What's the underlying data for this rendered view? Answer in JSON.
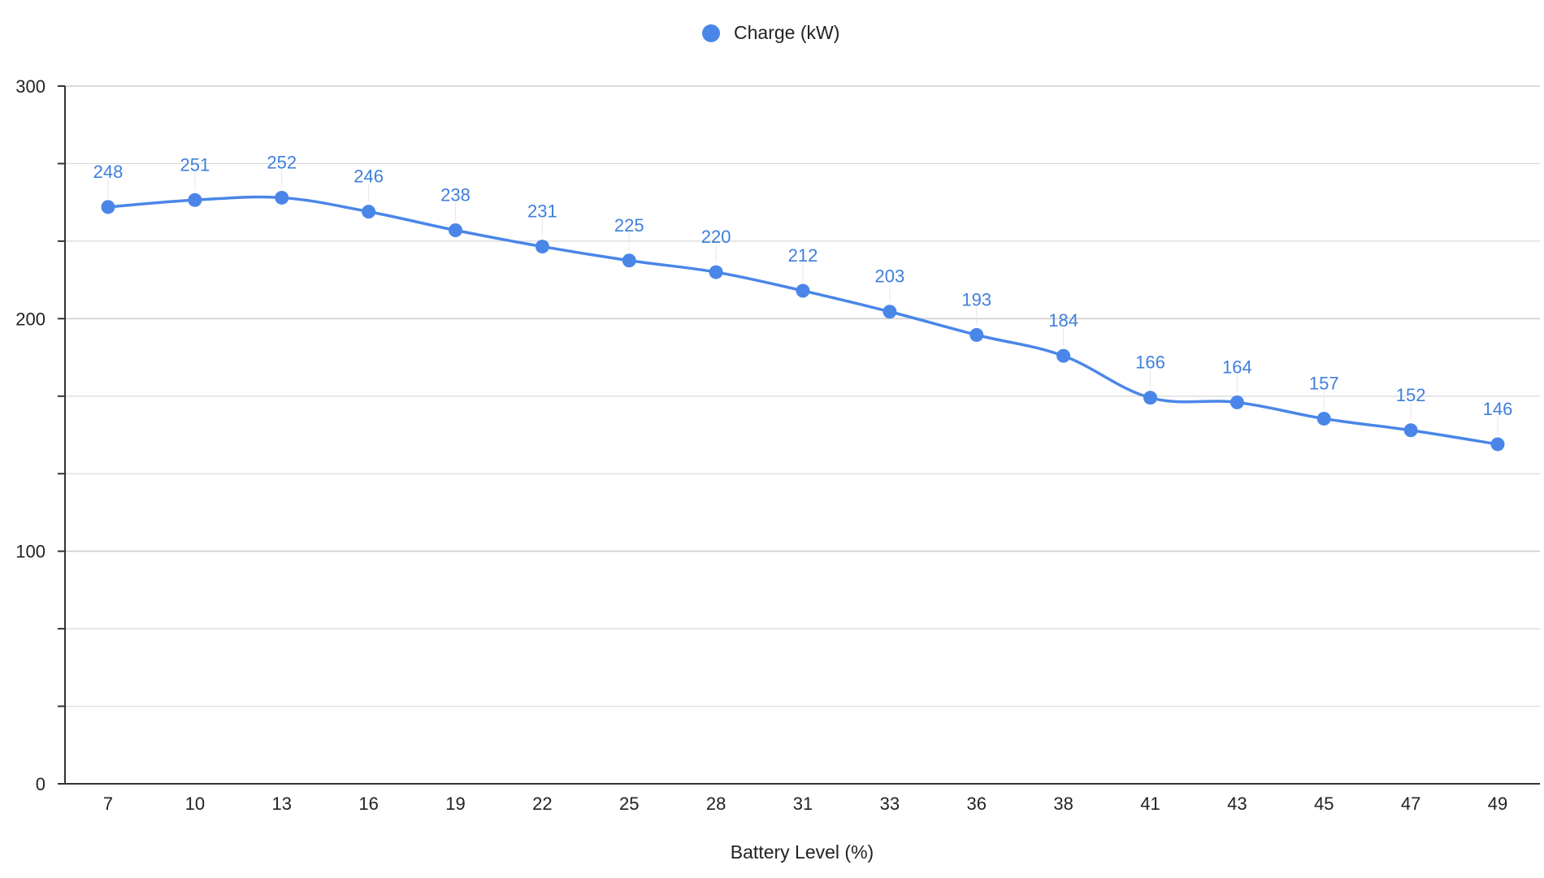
{
  "chart_data": {
    "type": "line",
    "title": "",
    "xlabel": "Battery Level (%)",
    "ylabel": "",
    "ylim": [
      0,
      300
    ],
    "y_major_ticks": [
      0,
      100,
      200,
      300
    ],
    "y_minor_step": 33.3333,
    "grid": true,
    "smooth": true,
    "legend": {
      "placement": "top-center",
      "entries": [
        "Charge (kW)"
      ]
    },
    "categories": [
      "7",
      "10",
      "13",
      "16",
      "19",
      "22",
      "25",
      "28",
      "31",
      "33",
      "36",
      "38",
      "41",
      "43",
      "45",
      "47",
      "49"
    ],
    "series": [
      {
        "name": "Charge (kW)",
        "color": "#4a86e8",
        "values": [
          248,
          251,
          252,
          246,
          238,
          231,
          225,
          220,
          212,
          203,
          193,
          184,
          166,
          164,
          157,
          152,
          146
        ],
        "show_data_labels": true
      }
    ]
  },
  "colors": {
    "series": "#4a86e8",
    "data_label": "#3f7fdb",
    "axis": "#333333",
    "gridline": "#d9d9d9",
    "gridline_major": "#cfcfcf"
  }
}
